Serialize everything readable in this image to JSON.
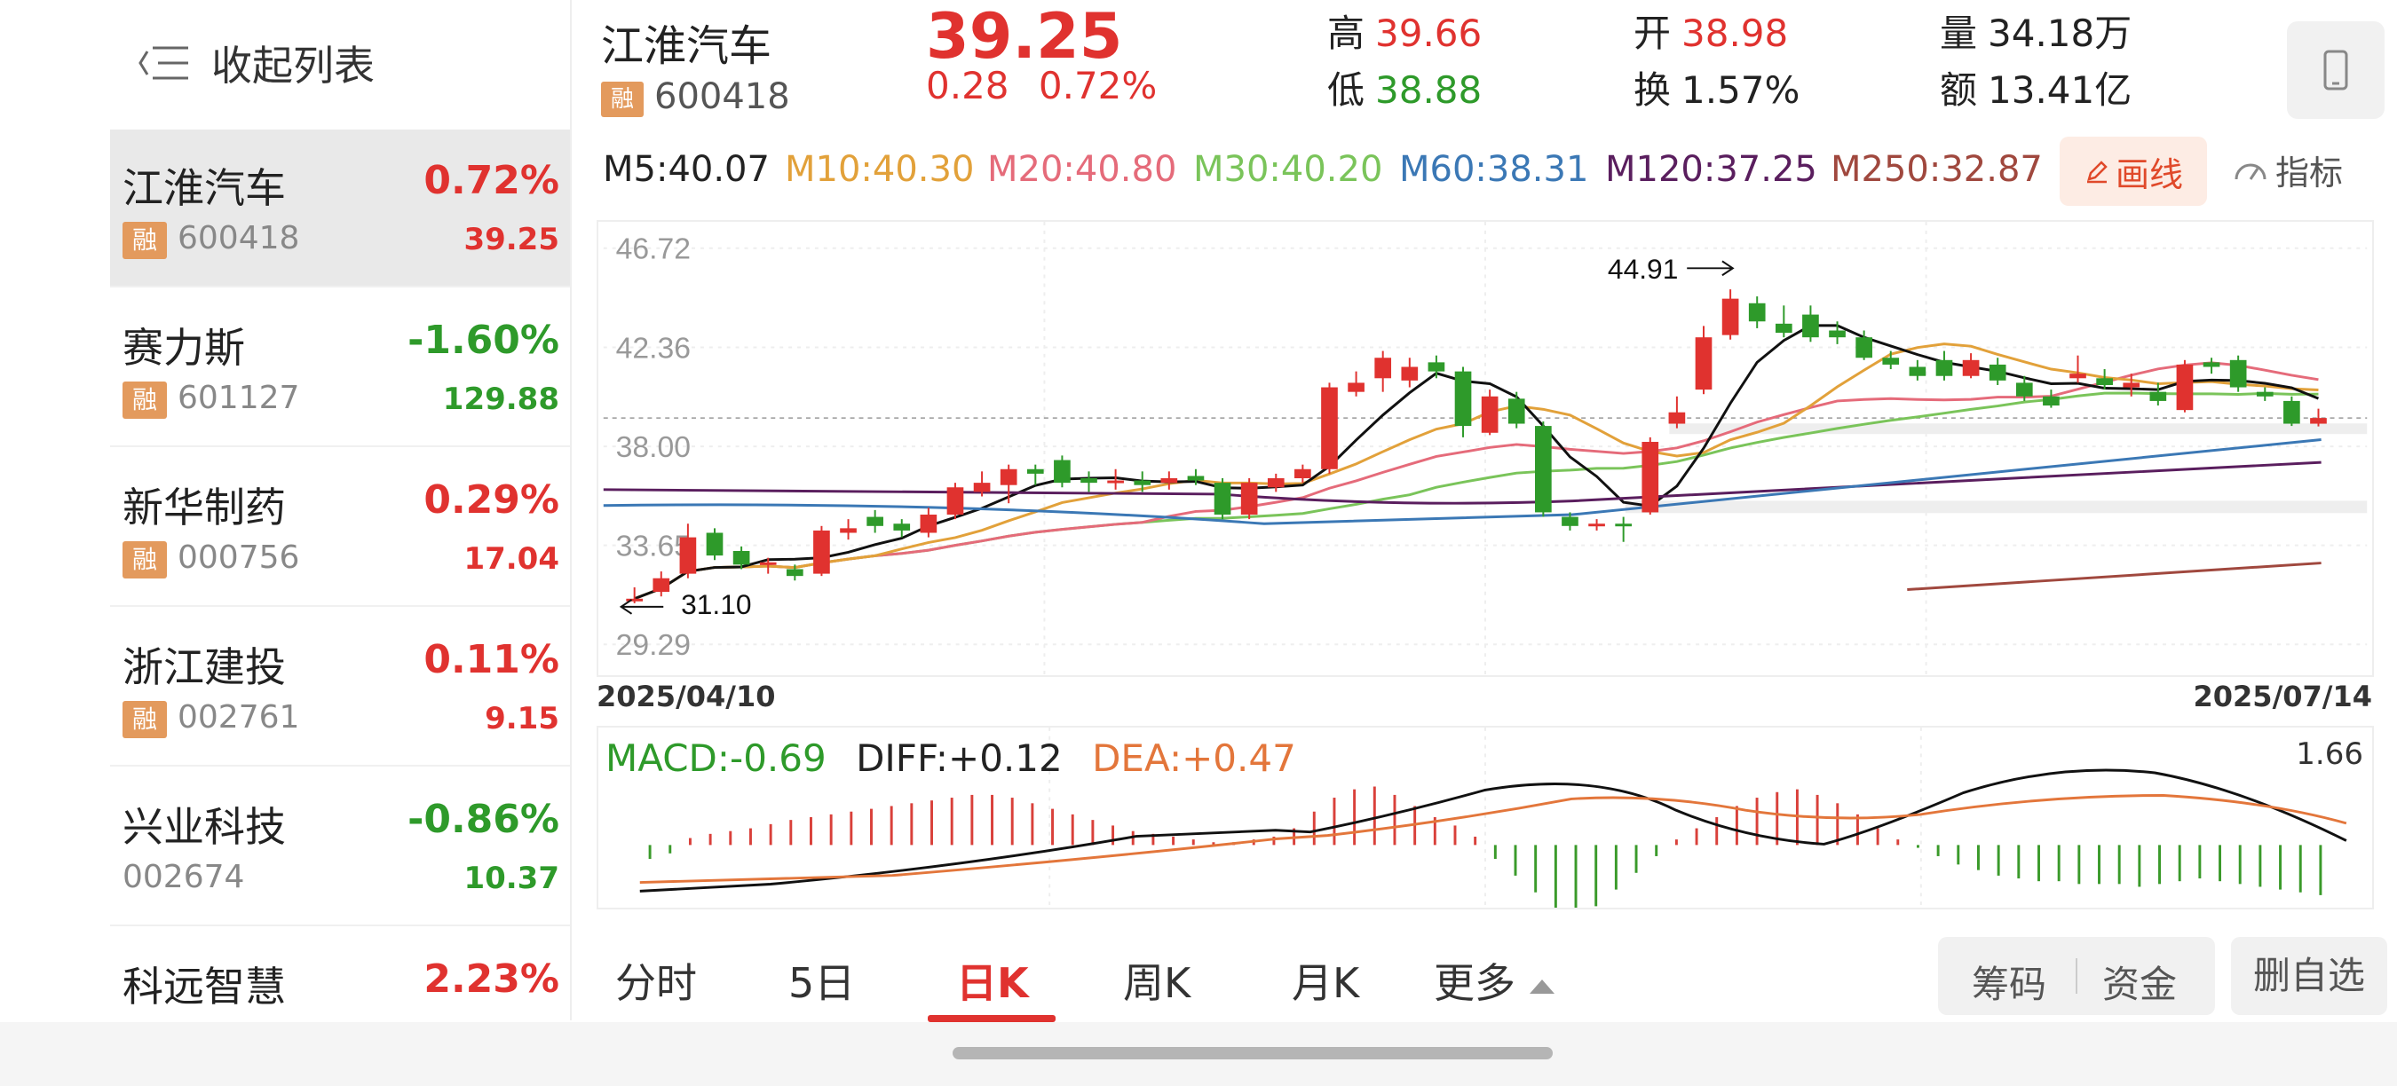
{
  "sidebar": {
    "collapse_label": "收起列表",
    "rong_label": "融",
    "items": [
      {
        "name": "江淮汽车",
        "pct": "0.72%",
        "code": "600418",
        "price": "39.25",
        "rong": true,
        "trend": "up",
        "active": true
      },
      {
        "name": "赛力斯",
        "pct": "-1.60%",
        "code": "601127",
        "price": "129.88",
        "rong": true,
        "trend": "down",
        "active": false
      },
      {
        "name": "新华制药",
        "pct": "0.29%",
        "code": "000756",
        "price": "17.04",
        "rong": true,
        "trend": "up",
        "active": false
      },
      {
        "name": "浙江建投",
        "pct": "0.11%",
        "code": "002761",
        "price": "9.15",
        "rong": true,
        "trend": "up",
        "active": false
      },
      {
        "name": "兴业科技",
        "pct": "-0.86%",
        "code": "002674",
        "price": "10.37",
        "rong": false,
        "trend": "down",
        "active": false
      },
      {
        "name": "科远智慧",
        "pct": "2.23%",
        "code": "",
        "price": "",
        "rong": false,
        "trend": "up",
        "active": false
      }
    ]
  },
  "header": {
    "name": "江淮汽车",
    "rong": "融",
    "code": "600418",
    "price": "39.25",
    "change": "0.28",
    "change_pct": "0.72%",
    "high_label": "高",
    "high": "39.66",
    "low_label": "低",
    "low": "38.88",
    "open_label": "开",
    "open": "38.98",
    "turnover_label": "换",
    "turnover": "1.57%",
    "volume_label": "量",
    "volume": "34.18万",
    "amount_label": "额",
    "amount": "13.41亿"
  },
  "ma_bar": {
    "items": [
      {
        "text": "M5:40.07",
        "color": "#222222"
      },
      {
        "text": "M10:40.30",
        "color": "#e2a13a"
      },
      {
        "text": "M20:40.80",
        "color": "#e56b7a"
      },
      {
        "text": "M30:40.20",
        "color": "#7ac45a"
      },
      {
        "text": "M60:38.31",
        "color": "#3b78b5"
      },
      {
        "text": "M120:37.25",
        "color": "#5a1e5e"
      },
      {
        "text": "M250:32.87",
        "color": "#a0483e"
      }
    ],
    "draw_label": "画线",
    "indicator_label": "指标"
  },
  "kline": {
    "y_ticks": [
      "46.72",
      "42.36",
      "38.00",
      "33.65",
      "29.29"
    ],
    "high_marker": "44.91",
    "low_marker": "31.10",
    "date_start": "2025/04/10",
    "date_end": "2025/07/14",
    "up_color": "#e0322f",
    "down_color": "#2e9a2a"
  },
  "macd": {
    "macd_text": "MACD:-0.69",
    "diff_text": "DIFF:+0.12",
    "dea_text": "DEA:+0.47",
    "max_label": "1.66"
  },
  "tabs": {
    "items": [
      "分时",
      "5日",
      "日K",
      "周K",
      "月K",
      "更多"
    ],
    "active": "日K",
    "chip_label": "筹码",
    "fund_label": "资金",
    "delete_label": "删自选"
  },
  "chart_data": {
    "type": "candlestick",
    "title": "",
    "x_range": [
      "2025/04/10",
      "2025/07/14"
    ],
    "ylim": [
      29.29,
      46.72
    ],
    "y_ticks": [
      46.72,
      42.36,
      38.0,
      33.65,
      29.29
    ],
    "candles": [
      {
        "o": 31.2,
        "c": 31.3,
        "h": 31.8,
        "l": 31.1
      },
      {
        "o": 31.6,
        "c": 32.2,
        "h": 32.5,
        "l": 31.4
      },
      {
        "o": 32.4,
        "c": 34.0,
        "h": 34.6,
        "l": 32.2
      },
      {
        "o": 34.2,
        "c": 33.2,
        "h": 34.4,
        "l": 33.0
      },
      {
        "o": 33.4,
        "c": 32.8,
        "h": 33.6,
        "l": 32.6
      },
      {
        "o": 32.8,
        "c": 32.9,
        "h": 33.1,
        "l": 32.4
      },
      {
        "o": 32.6,
        "c": 32.3,
        "h": 32.8,
        "l": 32.1
      },
      {
        "o": 32.4,
        "c": 34.3,
        "h": 34.5,
        "l": 32.3
      },
      {
        "o": 34.2,
        "c": 34.4,
        "h": 34.8,
        "l": 33.9
      },
      {
        "o": 34.9,
        "c": 34.5,
        "h": 35.2,
        "l": 34.2
      },
      {
        "o": 34.6,
        "c": 34.3,
        "h": 34.8,
        "l": 34.0
      },
      {
        "o": 34.2,
        "c": 35.0,
        "h": 35.3,
        "l": 34.0
      },
      {
        "o": 35.0,
        "c": 36.2,
        "h": 36.4,
        "l": 34.8
      },
      {
        "o": 36.0,
        "c": 36.4,
        "h": 36.9,
        "l": 35.8
      },
      {
        "o": 36.3,
        "c": 37.0,
        "h": 37.2,
        "l": 35.5
      },
      {
        "o": 37.0,
        "c": 36.8,
        "h": 37.2,
        "l": 36.3
      },
      {
        "o": 37.4,
        "c": 36.4,
        "h": 37.6,
        "l": 36.2
      },
      {
        "o": 36.6,
        "c": 36.4,
        "h": 36.9,
        "l": 36.0
      },
      {
        "o": 36.4,
        "c": 36.5,
        "h": 37.0,
        "l": 36.1
      },
      {
        "o": 36.5,
        "c": 36.3,
        "h": 36.9,
        "l": 36.0
      },
      {
        "o": 36.4,
        "c": 36.6,
        "h": 36.9,
        "l": 36.1
      },
      {
        "o": 36.7,
        "c": 36.5,
        "h": 37.0,
        "l": 36.3
      },
      {
        "o": 36.4,
        "c": 35.0,
        "h": 36.6,
        "l": 34.8
      },
      {
        "o": 35.0,
        "c": 36.4,
        "h": 36.6,
        "l": 34.8
      },
      {
        "o": 36.2,
        "c": 36.6,
        "h": 36.8,
        "l": 36.0
      },
      {
        "o": 36.6,
        "c": 37.0,
        "h": 37.2,
        "l": 36.4
      },
      {
        "o": 37.0,
        "c": 40.6,
        "h": 40.8,
        "l": 36.8
      },
      {
        "o": 40.4,
        "c": 40.8,
        "h": 41.3,
        "l": 40.2
      },
      {
        "o": 41.0,
        "c": 41.9,
        "h": 42.2,
        "l": 40.4
      },
      {
        "o": 40.9,
        "c": 41.5,
        "h": 41.9,
        "l": 40.6
      },
      {
        "o": 41.7,
        "c": 41.3,
        "h": 42.0,
        "l": 41.0
      },
      {
        "o": 41.3,
        "c": 38.9,
        "h": 41.5,
        "l": 38.4
      },
      {
        "o": 38.6,
        "c": 40.2,
        "h": 40.5,
        "l": 38.5
      },
      {
        "o": 40.1,
        "c": 39.0,
        "h": 40.4,
        "l": 38.8
      },
      {
        "o": 38.9,
        "c": 35.1,
        "h": 39.1,
        "l": 34.9
      },
      {
        "o": 34.9,
        "c": 34.5,
        "h": 35.1,
        "l": 34.3
      },
      {
        "o": 34.5,
        "c": 34.6,
        "h": 34.8,
        "l": 34.3
      },
      {
        "o": 34.6,
        "c": 34.5,
        "h": 34.9,
        "l": 33.8
      },
      {
        "o": 35.1,
        "c": 38.2,
        "h": 38.4,
        "l": 35.0
      },
      {
        "o": 39.0,
        "c": 39.5,
        "h": 40.2,
        "l": 38.8
      },
      {
        "o": 40.5,
        "c": 42.8,
        "h": 43.3,
        "l": 40.3
      },
      {
        "o": 42.9,
        "c": 44.5,
        "h": 44.91,
        "l": 42.7
      },
      {
        "o": 44.3,
        "c": 43.5,
        "h": 44.6,
        "l": 43.2
      },
      {
        "o": 43.4,
        "c": 43.0,
        "h": 44.2,
        "l": 42.8
      },
      {
        "o": 43.8,
        "c": 42.8,
        "h": 44.2,
        "l": 42.6
      },
      {
        "o": 43.1,
        "c": 42.8,
        "h": 43.5,
        "l": 42.5
      },
      {
        "o": 42.8,
        "c": 41.9,
        "h": 43.1,
        "l": 41.8
      },
      {
        "o": 41.9,
        "c": 41.6,
        "h": 42.2,
        "l": 41.4
      },
      {
        "o": 41.5,
        "c": 41.1,
        "h": 41.8,
        "l": 40.9
      },
      {
        "o": 41.8,
        "c": 41.1,
        "h": 42.2,
        "l": 40.9
      },
      {
        "o": 41.1,
        "c": 41.8,
        "h": 42.1,
        "l": 41.0
      },
      {
        "o": 41.6,
        "c": 40.9,
        "h": 41.9,
        "l": 40.7
      },
      {
        "o": 40.8,
        "c": 40.2,
        "h": 41.1,
        "l": 40.0
      },
      {
        "o": 40.2,
        "c": 39.8,
        "h": 40.5,
        "l": 39.7
      },
      {
        "o": 41.0,
        "c": 41.2,
        "h": 42.0,
        "l": 40.8
      },
      {
        "o": 41.0,
        "c": 40.7,
        "h": 41.4,
        "l": 40.5
      },
      {
        "o": 40.6,
        "c": 40.8,
        "h": 41.2,
        "l": 40.2
      },
      {
        "o": 40.4,
        "c": 40.0,
        "h": 40.8,
        "l": 39.8
      },
      {
        "o": 39.6,
        "c": 41.6,
        "h": 41.8,
        "l": 39.5
      },
      {
        "o": 41.7,
        "c": 41.5,
        "h": 41.9,
        "l": 41.2
      },
      {
        "o": 41.8,
        "c": 40.6,
        "h": 42.0,
        "l": 40.4
      },
      {
        "o": 40.4,
        "c": 40.2,
        "h": 40.6,
        "l": 40.0
      },
      {
        "o": 40.0,
        "c": 39.0,
        "h": 40.2,
        "l": 38.9
      },
      {
        "o": 39.0,
        "c": 39.25,
        "h": 39.66,
        "l": 38.88
      }
    ]
  }
}
